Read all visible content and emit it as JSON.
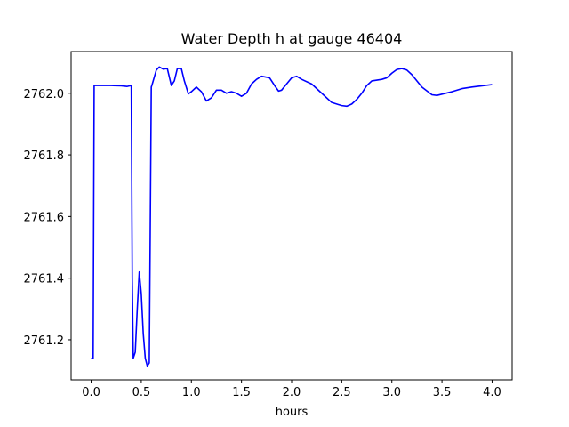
{
  "chart_data": {
    "type": "line",
    "title": "Water Depth h at gauge 46404",
    "xlabel": "hours",
    "ylabel": "",
    "xlim": [
      -0.2,
      4.2
    ],
    "ylim": [
      2761.07,
      2762.135
    ],
    "xticks": [
      0.0,
      0.5,
      1.0,
      1.5,
      2.0,
      2.5,
      3.0,
      3.5,
      4.0
    ],
    "xtick_labels": [
      "0.0",
      "0.5",
      "1.0",
      "1.5",
      "2.0",
      "2.5",
      "3.0",
      "3.5",
      "4.0"
    ],
    "yticks": [
      2761.2,
      2761.4,
      2761.6,
      2761.8,
      2762.0
    ],
    "ytick_labels": [
      "2761.2",
      "2761.4",
      "2761.6",
      "2761.8",
      "2762.0"
    ],
    "grid": false,
    "line_color": "#0000ff",
    "series": [
      {
        "x": [
          0.0,
          0.02,
          0.03,
          0.1,
          0.2,
          0.3,
          0.36,
          0.4,
          0.41,
          0.42,
          0.44,
          0.46,
          0.48,
          0.5,
          0.52,
          0.54,
          0.56,
          0.58,
          0.6,
          0.61,
          0.65,
          0.68,
          0.72,
          0.76,
          0.8,
          0.83,
          0.86,
          0.9,
          0.93,
          0.97,
          1.0,
          1.05,
          1.1,
          1.15,
          1.2,
          1.25,
          1.3,
          1.35,
          1.4,
          1.45,
          1.5,
          1.55,
          1.6,
          1.65,
          1.7,
          1.78,
          1.83,
          1.87,
          1.9,
          1.95,
          2.0,
          2.05,
          2.1,
          2.2,
          2.3,
          2.4,
          2.5,
          2.55,
          2.6,
          2.65,
          2.7,
          2.75,
          2.8,
          2.9,
          2.95,
          3.0,
          3.05,
          3.1,
          3.15,
          3.2,
          3.3,
          3.4,
          3.45,
          3.5,
          3.6,
          3.7,
          3.8,
          3.9,
          4.0
        ],
        "y": [
          2761.14,
          2761.14,
          2762.025,
          2762.025,
          2762.025,
          2762.024,
          2762.022,
          2762.025,
          2761.4,
          2761.14,
          2761.16,
          2761.3,
          2761.42,
          2761.35,
          2761.22,
          2761.14,
          2761.115,
          2761.125,
          2762.02,
          2762.03,
          2762.075,
          2762.085,
          2762.078,
          2762.08,
          2762.025,
          2762.04,
          2762.08,
          2762.08,
          2762.04,
          2761.998,
          2762.005,
          2762.02,
          2762.005,
          2761.975,
          2761.985,
          2762.01,
          2762.01,
          2762.0,
          2762.005,
          2762.0,
          2761.99,
          2762.0,
          2762.03,
          2762.045,
          2762.055,
          2762.05,
          2762.025,
          2762.007,
          2762.01,
          2762.03,
          2762.05,
          2762.055,
          2762.045,
          2762.03,
          2762.0,
          2761.97,
          2761.96,
          2761.958,
          2761.965,
          2761.98,
          2762.0,
          2762.025,
          2762.04,
          2762.045,
          2762.05,
          2762.065,
          2762.077,
          2762.08,
          2762.075,
          2762.06,
          2762.02,
          2761.995,
          2761.993,
          2761.997,
          2762.005,
          2762.015,
          2762.02,
          2762.024,
          2762.028
        ]
      }
    ]
  }
}
